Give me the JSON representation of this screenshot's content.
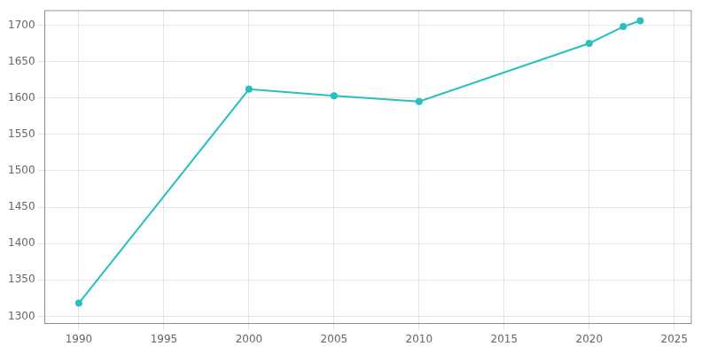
{
  "chart_data": {
    "type": "line",
    "x": [
      1990,
      2000,
      2005,
      2010,
      2020,
      2022,
      2023
    ],
    "values": [
      1318,
      1612,
      1603,
      1595,
      1675,
      1698,
      1706
    ],
    "color": "#2abfbf",
    "marker": "o",
    "xlim": [
      1988,
      2026
    ],
    "ylim": [
      1290,
      1720
    ],
    "xticks": [
      1990,
      1995,
      2000,
      2005,
      2010,
      2015,
      2020,
      2025
    ],
    "yticks": [
      1300,
      1350,
      1400,
      1450,
      1500,
      1550,
      1600,
      1650,
      1700
    ],
    "grid": true
  }
}
